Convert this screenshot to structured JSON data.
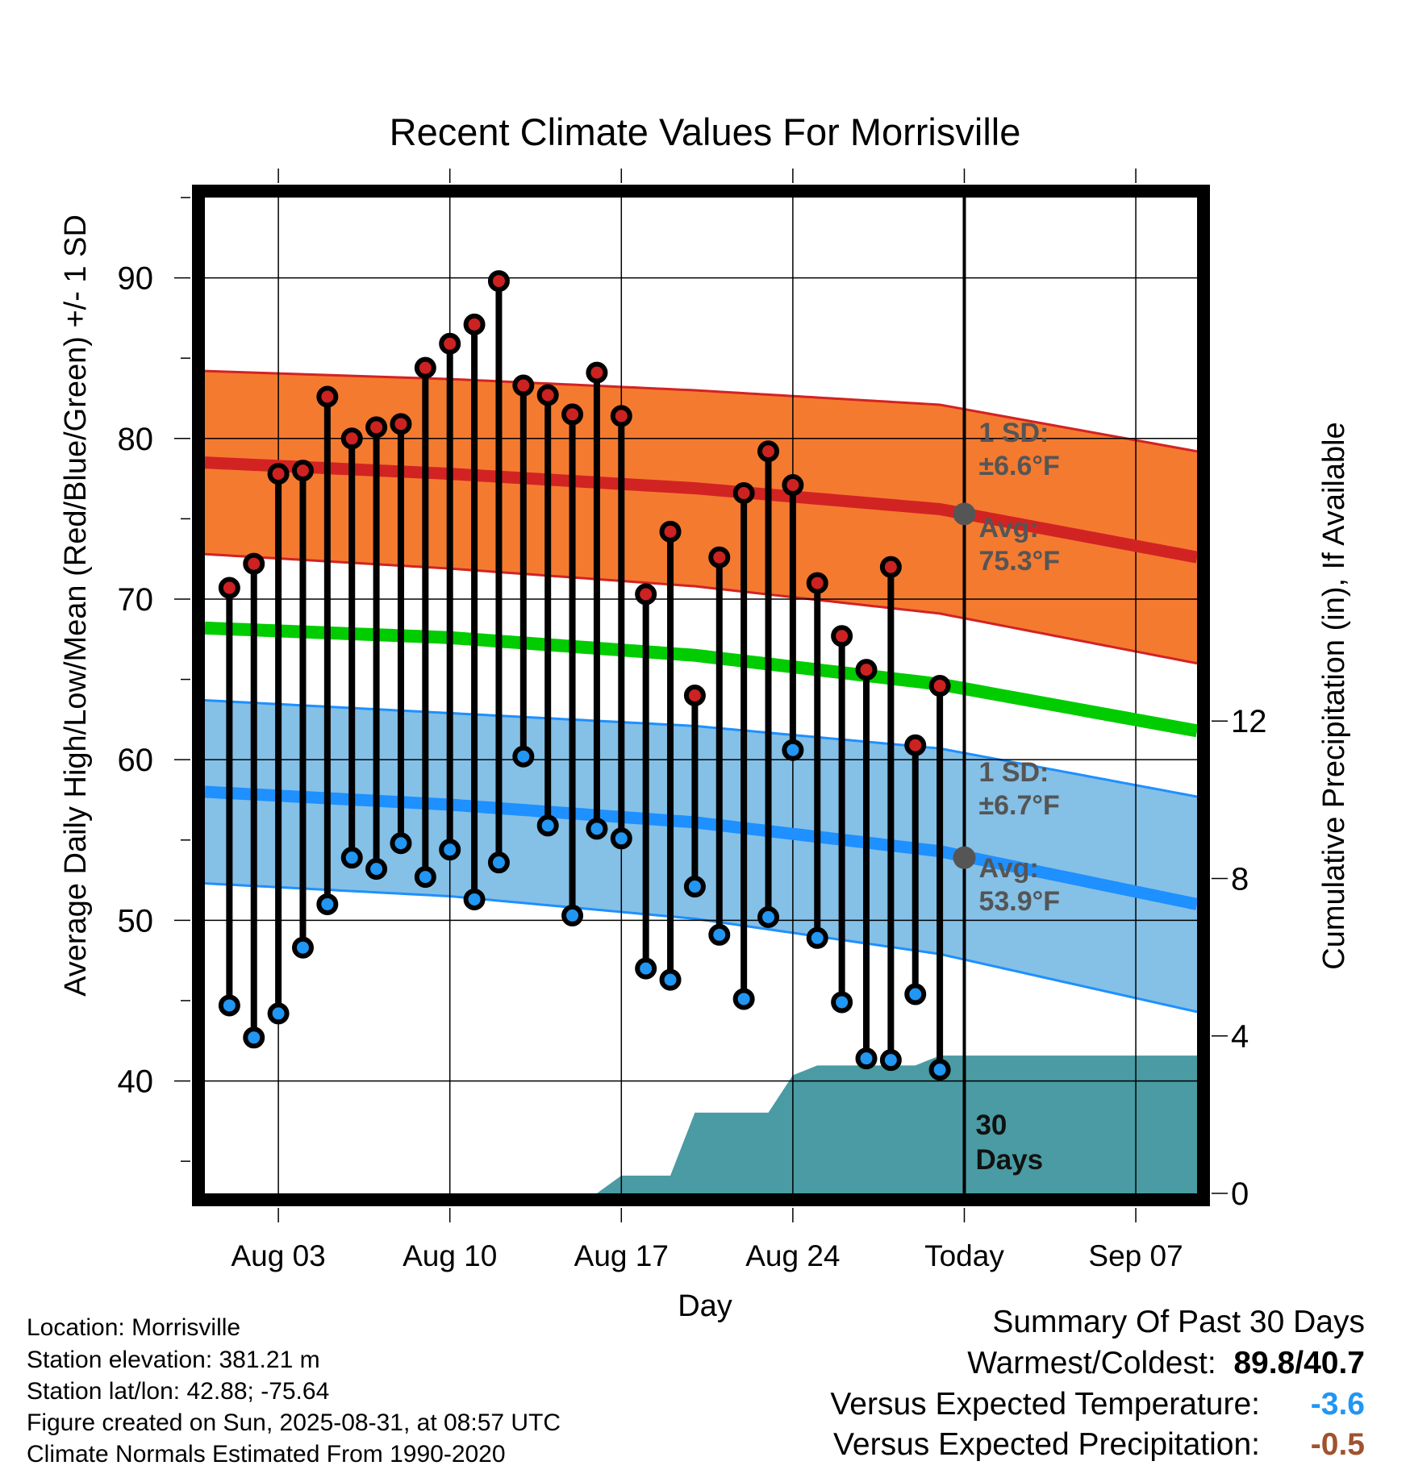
{
  "chart_data": {
    "type": "line",
    "title": "Recent Climate Values For Morrisville",
    "xlabel": "Day",
    "ylabel_left": "Average Daily High/Low/Mean (Red/Blue/Green) +/- 1 SD",
    "ylabel_right": "Cumulative Precipitation (in), If Available",
    "x_tick_labels": [
      "Aug 03",
      "Aug 10",
      "Aug 17",
      "Aug 24",
      "Today",
      "Sep 07"
    ],
    "x_tick_days": [
      3,
      10,
      17,
      24,
      31,
      38
    ],
    "x_range_days": [
      0,
      40.5
    ],
    "today_day": 31,
    "y_left_ticks": [
      40,
      50,
      60,
      70,
      80,
      90
    ],
    "y_left_range": [
      33,
      95
    ],
    "y_right_ticks": [
      0,
      4,
      8,
      12
    ],
    "y_right_range": [
      0,
      25.3
    ],
    "days": [
      1,
      2,
      3,
      4,
      5,
      6,
      7,
      8,
      9,
      10,
      11,
      12,
      13,
      14,
      15,
      16,
      17,
      18,
      19,
      20,
      21,
      22,
      23,
      24,
      25,
      26,
      27,
      28,
      29,
      30
    ],
    "highs": [
      70.7,
      72.2,
      77.8,
      78.0,
      82.6,
      80.0,
      80.7,
      80.9,
      84.4,
      85.9,
      87.1,
      89.8,
      83.3,
      82.7,
      81.5,
      84.1,
      81.4,
      70.3,
      74.2,
      64.0,
      72.6,
      76.6,
      79.2,
      77.1,
      71.0,
      67.7,
      65.6,
      72.0,
      60.9,
      64.6
    ],
    "lows": [
      44.7,
      42.7,
      44.2,
      48.3,
      51.0,
      53.9,
      53.2,
      54.8,
      52.7,
      54.4,
      51.3,
      53.6,
      60.2,
      55.9,
      50.3,
      55.7,
      55.1,
      47.0,
      46.3,
      52.1,
      49.1,
      45.1,
      50.2,
      60.6,
      48.9,
      44.9,
      41.4,
      41.3,
      45.4,
      40.7
    ],
    "normal_high": {
      "days": [
        0,
        10,
        20,
        30,
        40.5
      ],
      "values": [
        78.5,
        77.8,
        76.9,
        75.6,
        72.6
      ],
      "sd": [
        5.7,
        5.9,
        6.1,
        6.5,
        6.6
      ]
    },
    "normal_mean": {
      "days": [
        0,
        10,
        20,
        30,
        40.5
      ],
      "values": [
        68.2,
        67.6,
        66.5,
        64.7,
        61.8
      ]
    },
    "normal_low": {
      "days": [
        0,
        10,
        20,
        30,
        40.5
      ],
      "values": [
        58.0,
        57.2,
        56.1,
        54.3,
        51.0
      ],
      "sd": [
        5.7,
        5.7,
        6.0,
        6.4,
        6.7
      ]
    },
    "precip_cumulative": {
      "days": [
        0,
        16,
        17,
        18,
        19,
        20,
        21,
        22,
        23,
        24,
        25,
        26,
        27,
        28,
        29,
        30,
        31,
        40.5
      ],
      "values": [
        0,
        0,
        0.45,
        0.45,
        0.45,
        2.05,
        2.05,
        2.05,
        2.05,
        3.0,
        3.25,
        3.25,
        3.25,
        3.25,
        3.25,
        3.5,
        3.5,
        3.5
      ]
    },
    "annotations": {
      "high_sd_label": "1 SD:",
      "high_sd_value": "±6.6°F",
      "high_avg_label": "Avg:",
      "high_avg_value": "75.3°F",
      "high_avg_today": 75.3,
      "low_sd_label": "1 SD:",
      "low_sd_value": "±6.7°F",
      "low_avg_label": "Avg:",
      "low_avg_value": "53.9°F",
      "low_avg_today": 53.9,
      "days_line1": "30",
      "days_line2": "Days"
    },
    "colors": {
      "high_band": "#f47a30",
      "high_line": "#d22323",
      "mean_line": "#00cc00",
      "low_band": "#85c0e6",
      "low_line": "#1e90ff",
      "precip": "#4a9ba3",
      "high_marker": "#cc2222",
      "low_marker": "#2196f3",
      "annotation": "#555555"
    }
  },
  "footer": {
    "location": "Location: Morrisville",
    "elevation": "Station elevation: 381.21 m",
    "latlon": "Station lat/lon: 42.88; -75.64",
    "created": "Figure created on Sun, 2025-08-31, at 08:57 UTC",
    "normals": "Climate Normals Estimated From 1990-2020"
  },
  "summary": {
    "title": "Summary Of Past 30 Days",
    "warm_cold_label": "Warmest/Coldest:",
    "warm_value": "89.8",
    "cold_value": "40.7",
    "temp_label": "Versus Expected Temperature:",
    "temp_value": "-3.6",
    "temp_color": "#2196f3",
    "precip_label": "Versus Expected Precipitation:",
    "precip_value": "-0.5",
    "precip_color": "#a0522d"
  }
}
